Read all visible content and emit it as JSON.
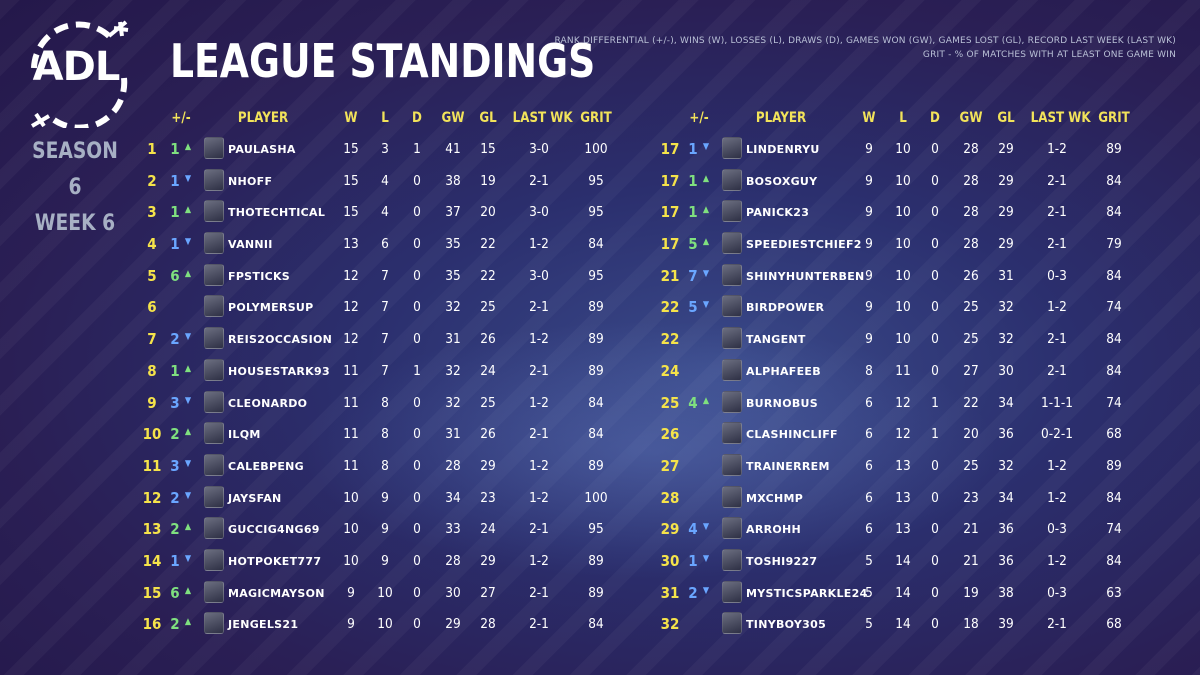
{
  "logo_text": "ADL",
  "season": "SEASON 6",
  "week": "WEEK 6",
  "title": "LEAGUE STANDINGS",
  "legend_line1": "RANK DIFFERENTIAL (+/-), WINS (W), LOSSES (L), DRAWS (D), GAMES WON (GW), GAMES LOST (GL), RECORD LAST WEEK (LAST WK)",
  "legend_line2": "GRIT - % OF MATCHES WITH AT LEAST ONE GAME WIN",
  "headers": {
    "diff": "+/-",
    "player": "PLAYER",
    "w": "W",
    "l": "L",
    "d": "D",
    "gw": "GW",
    "gl": "GL",
    "lastwk": "LAST WK",
    "grit": "GRIT"
  },
  "colors": {
    "rank": "#f5e34a",
    "header": "#f2e35a",
    "up": "#7fe07f",
    "down": "#6aa6ff"
  },
  "icons": {
    "up": "up-arrow-icon",
    "down": "down-arrow-icon"
  },
  "left": [
    {
      "rank": "1",
      "diff": "1",
      "dir": "up",
      "player": "PAULASHA",
      "w": "15",
      "l": "3",
      "d": "1",
      "gw": "41",
      "gl": "15",
      "lastwk": "3-0",
      "grit": "100"
    },
    {
      "rank": "2",
      "diff": "1",
      "dir": "down",
      "player": "NHOFF",
      "w": "15",
      "l": "4",
      "d": "0",
      "gw": "38",
      "gl": "19",
      "lastwk": "2-1",
      "grit": "95"
    },
    {
      "rank": "3",
      "diff": "1",
      "dir": "up",
      "player": "THOTECHTICAL",
      "w": "15",
      "l": "4",
      "d": "0",
      "gw": "37",
      "gl": "20",
      "lastwk": "3-0",
      "grit": "95"
    },
    {
      "rank": "4",
      "diff": "1",
      "dir": "down",
      "player": "VANNII",
      "w": "13",
      "l": "6",
      "d": "0",
      "gw": "35",
      "gl": "22",
      "lastwk": "1-2",
      "grit": "84"
    },
    {
      "rank": "5",
      "diff": "6",
      "dir": "up",
      "player": "FPSTICKS",
      "w": "12",
      "l": "7",
      "d": "0",
      "gw": "35",
      "gl": "22",
      "lastwk": "3-0",
      "grit": "95"
    },
    {
      "rank": "6",
      "diff": "",
      "dir": "",
      "player": "POLYMERSUP",
      "w": "12",
      "l": "7",
      "d": "0",
      "gw": "32",
      "gl": "25",
      "lastwk": "2-1",
      "grit": "89"
    },
    {
      "rank": "7",
      "diff": "2",
      "dir": "down",
      "player": "REIS2OCCASION",
      "w": "12",
      "l": "7",
      "d": "0",
      "gw": "31",
      "gl": "26",
      "lastwk": "1-2",
      "grit": "89"
    },
    {
      "rank": "8",
      "diff": "1",
      "dir": "up",
      "player": "HOUSESTARK93",
      "w": "11",
      "l": "7",
      "d": "1",
      "gw": "32",
      "gl": "24",
      "lastwk": "2-1",
      "grit": "89"
    },
    {
      "rank": "9",
      "diff": "3",
      "dir": "down",
      "player": "CLEONARDO",
      "w": "11",
      "l": "8",
      "d": "0",
      "gw": "32",
      "gl": "25",
      "lastwk": "1-2",
      "grit": "84"
    },
    {
      "rank": "10",
      "diff": "2",
      "dir": "up",
      "player": "ILQM",
      "w": "11",
      "l": "8",
      "d": "0",
      "gw": "31",
      "gl": "26",
      "lastwk": "2-1",
      "grit": "84"
    },
    {
      "rank": "11",
      "diff": "3",
      "dir": "down",
      "player": "CALEBPENG",
      "w": "11",
      "l": "8",
      "d": "0",
      "gw": "28",
      "gl": "29",
      "lastwk": "1-2",
      "grit": "89"
    },
    {
      "rank": "12",
      "diff": "2",
      "dir": "down",
      "player": "JAYSFAN",
      "w": "10",
      "l": "9",
      "d": "0",
      "gw": "34",
      "gl": "23",
      "lastwk": "1-2",
      "grit": "100"
    },
    {
      "rank": "13",
      "diff": "2",
      "dir": "up",
      "player": "GUCCIG4NG69",
      "w": "10",
      "l": "9",
      "d": "0",
      "gw": "33",
      "gl": "24",
      "lastwk": "2-1",
      "grit": "95"
    },
    {
      "rank": "14",
      "diff": "1",
      "dir": "down",
      "player": "HOTPOKET777",
      "w": "10",
      "l": "9",
      "d": "0",
      "gw": "28",
      "gl": "29",
      "lastwk": "1-2",
      "grit": "89"
    },
    {
      "rank": "15",
      "diff": "6",
      "dir": "up",
      "player": "MAGICMAYSON",
      "w": "9",
      "l": "10",
      "d": "0",
      "gw": "30",
      "gl": "27",
      "lastwk": "2-1",
      "grit": "89"
    },
    {
      "rank": "16",
      "diff": "2",
      "dir": "up",
      "player": "JENGELS21",
      "w": "9",
      "l": "10",
      "d": "0",
      "gw": "29",
      "gl": "28",
      "lastwk": "2-1",
      "grit": "84"
    }
  ],
  "right": [
    {
      "rank": "17",
      "diff": "1",
      "dir": "down",
      "player": "LINDENRYU",
      "w": "9",
      "l": "10",
      "d": "0",
      "gw": "28",
      "gl": "29",
      "lastwk": "1-2",
      "grit": "89"
    },
    {
      "rank": "17",
      "diff": "1",
      "dir": "up",
      "player": "BOSOXGUY",
      "w": "9",
      "l": "10",
      "d": "0",
      "gw": "28",
      "gl": "29",
      "lastwk": "2-1",
      "grit": "84"
    },
    {
      "rank": "17",
      "diff": "1",
      "dir": "up",
      "player": "PANICK23",
      "w": "9",
      "l": "10",
      "d": "0",
      "gw": "28",
      "gl": "29",
      "lastwk": "2-1",
      "grit": "84"
    },
    {
      "rank": "17",
      "diff": "5",
      "dir": "up",
      "player": "SPEEDIESTCHIEF2",
      "w": "9",
      "l": "10",
      "d": "0",
      "gw": "28",
      "gl": "29",
      "lastwk": "2-1",
      "grit": "79"
    },
    {
      "rank": "21",
      "diff": "7",
      "dir": "down",
      "player": "SHINYHUNTERBEN",
      "w": "9",
      "l": "10",
      "d": "0",
      "gw": "26",
      "gl": "31",
      "lastwk": "0-3",
      "grit": "84"
    },
    {
      "rank": "22",
      "diff": "5",
      "dir": "down",
      "player": "BIRDPOWER",
      "w": "9",
      "l": "10",
      "d": "0",
      "gw": "25",
      "gl": "32",
      "lastwk": "1-2",
      "grit": "74"
    },
    {
      "rank": "22",
      "diff": "",
      "dir": "",
      "player": "TANGENT",
      "w": "9",
      "l": "10",
      "d": "0",
      "gw": "25",
      "gl": "32",
      "lastwk": "2-1",
      "grit": "84"
    },
    {
      "rank": "24",
      "diff": "",
      "dir": "",
      "player": "ALPHAFEEB",
      "w": "8",
      "l": "11",
      "d": "0",
      "gw": "27",
      "gl": "30",
      "lastwk": "2-1",
      "grit": "84"
    },
    {
      "rank": "25",
      "diff": "4",
      "dir": "up",
      "player": "BURNOBUS",
      "w": "6",
      "l": "12",
      "d": "1",
      "gw": "22",
      "gl": "34",
      "lastwk": "1-1-1",
      "grit": "74"
    },
    {
      "rank": "26",
      "diff": "",
      "dir": "",
      "player": "CLASHINCLIFF",
      "w": "6",
      "l": "12",
      "d": "1",
      "gw": "20",
      "gl": "36",
      "lastwk": "0-2-1",
      "grit": "68"
    },
    {
      "rank": "27",
      "diff": "",
      "dir": "",
      "player": "TRAINERREM",
      "w": "6",
      "l": "13",
      "d": "0",
      "gw": "25",
      "gl": "32",
      "lastwk": "1-2",
      "grit": "89"
    },
    {
      "rank": "28",
      "diff": "",
      "dir": "",
      "player": "MXCHMP",
      "w": "6",
      "l": "13",
      "d": "0",
      "gw": "23",
      "gl": "34",
      "lastwk": "1-2",
      "grit": "84"
    },
    {
      "rank": "29",
      "diff": "4",
      "dir": "down",
      "player": "ARROHH",
      "w": "6",
      "l": "13",
      "d": "0",
      "gw": "21",
      "gl": "36",
      "lastwk": "0-3",
      "grit": "74"
    },
    {
      "rank": "30",
      "diff": "1",
      "dir": "down",
      "player": "TOSHI9227",
      "w": "5",
      "l": "14",
      "d": "0",
      "gw": "21",
      "gl": "36",
      "lastwk": "1-2",
      "grit": "84"
    },
    {
      "rank": "31",
      "diff": "2",
      "dir": "down",
      "player": "MYSTICSPARKLE24",
      "w": "5",
      "l": "14",
      "d": "0",
      "gw": "19",
      "gl": "38",
      "lastwk": "0-3",
      "grit": "63"
    },
    {
      "rank": "32",
      "diff": "",
      "dir": "",
      "player": "TINYBOY305",
      "w": "5",
      "l": "14",
      "d": "0",
      "gw": "18",
      "gl": "39",
      "lastwk": "2-1",
      "grit": "68"
    }
  ]
}
